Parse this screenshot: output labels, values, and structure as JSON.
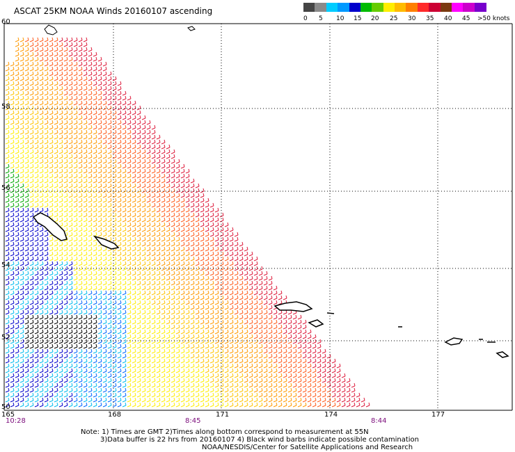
{
  "title": "ASCAT 25KM NOAA Winds 20160107 ascending",
  "legend": {
    "labels": [
      "0",
      "5",
      "10",
      "15",
      "20",
      "25",
      "30",
      "35",
      "40",
      "45",
      ">50 knots"
    ],
    "colors": [
      "#454545",
      "#8a8a8a",
      "#00ccff",
      "#0099ff",
      "#0000cc",
      "#00bb00",
      "#66cc00",
      "#ffee00",
      "#ffbb00",
      "#ff7f00",
      "#ff2a2a",
      "#cc0033",
      "#7a3a10",
      "#ff00ff",
      "#cc00cc",
      "#7700cc"
    ]
  },
  "axes": {
    "lat_labels": [
      "60",
      "58",
      "56",
      "54",
      "52",
      "50"
    ],
    "lon_labels": [
      "165",
      "168",
      "171",
      "174",
      "177"
    ]
  },
  "times": [
    "10:28",
    "8:45",
    "8:44"
  ],
  "notes": {
    "line1": "Note: 1) Times are GMT 2)Times along bottom correspond to measurement at 55N",
    "line2": "3)Data buffer is 22 hrs from 20160107 4) Black wind barbs indicate possible contamination",
    "line3": "NOAA/NESDIS/Center for Satellite Applications and Research"
  }
}
